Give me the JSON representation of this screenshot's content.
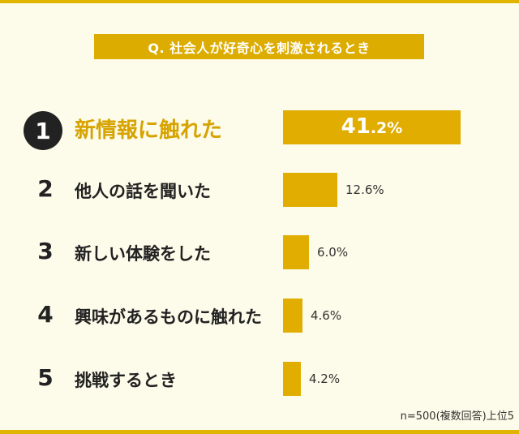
{
  "question": "Q. 社会人が好奇心を刺激されるとき",
  "note": "n=500(複数回答)上位5",
  "chart_data": {
    "type": "bar",
    "title": "Q. 社会人が好奇心を刺激されるとき",
    "unit": "%",
    "categories": [
      "新情報に触れた",
      "他人の話を聞いた",
      "新しい体験をした",
      "興味があるものに触れた",
      "挑戦するとき"
    ],
    "ranks": [
      "1",
      "2",
      "3",
      "4",
      "5"
    ],
    "values": [
      41.2,
      12.6,
      6.0,
      4.6,
      4.2
    ],
    "value_labels": [
      "41.2%",
      "12.6%",
      "6.0%",
      "4.6%",
      "4.2%"
    ],
    "value_label_parts": [
      [
        "41",
        ".2%"
      ]
    ],
    "colors": {
      "bar": "#e0ad00",
      "highlight_text": "#d6a300",
      "badge": "#222222"
    }
  }
}
